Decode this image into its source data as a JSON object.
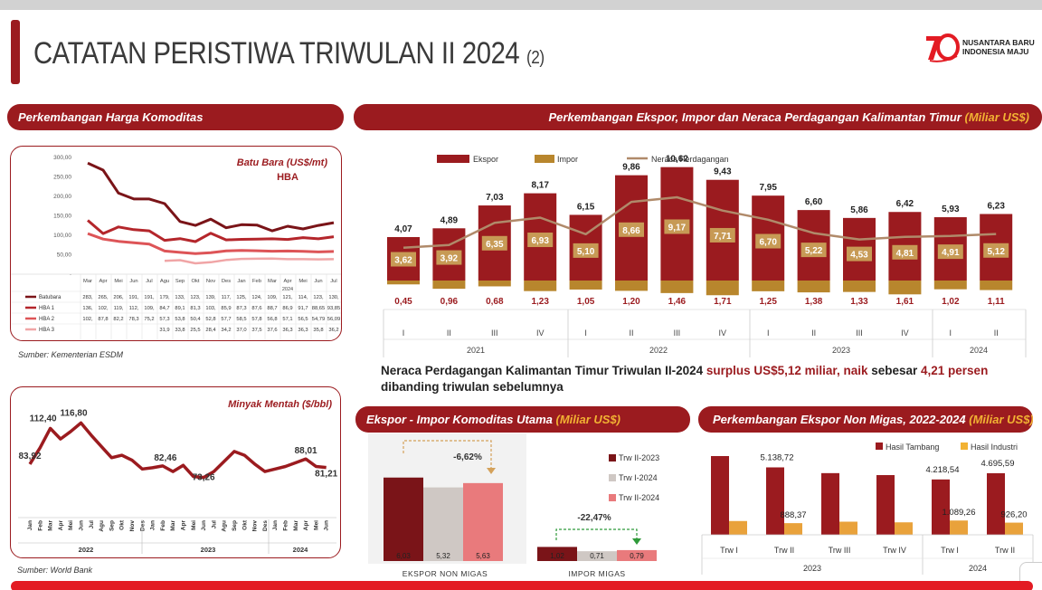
{
  "title": {
    "main": "CATATAN PERISTIWA TRIWULAN II 2024",
    "sub": "(2)"
  },
  "logo": {
    "line1": "NUSANTARA BARU",
    "line2": "INDONESIA MAJU"
  },
  "colors": {
    "brand_red": "#9b1b1f",
    "gold": "#b8862d",
    "yellow": "#f2b233",
    "dark_red": "#7a1418",
    "gray": "#cfc8c4",
    "pink": "#e97a7c"
  },
  "banners": {
    "komoditas": "Perkembangan Harga Komoditas",
    "eksim_prefix": "Perkembangan Ekspor, Impor dan Neraca Perdagangan Kalimantan Timur",
    "eksim_unit": "(Miliar US$)",
    "utama_prefix": "Ekspor - Impor Komoditas Utama",
    "utama_unit": "(Miliar US$)",
    "nonmigas_prefix": "Perkembangan Ekspor Non Migas, 2022-2024",
    "nonmigas_unit": "(Miliar US$)"
  },
  "sources": {
    "esdm": "Sumber: Kementerian ESDM",
    "wb": "Sumber: World Bank"
  },
  "summary": {
    "p1": "Neraca Perdagangan Kalimantan Timur Triwulan II-2024 ",
    "p2": "surplus US$5,12 miliar, naik ",
    "p3": "sebesar ",
    "p4": "4,21 persen",
    "p5": " dibanding triwulan sebelumnya"
  },
  "chart_data": [
    {
      "id": "batubara",
      "type": "line",
      "title": "Batu Bara (US$/mt)",
      "subtitle": "HBA",
      "ylim": [
        0,
        300
      ],
      "yticks": [
        "300,00",
        "250,00",
        "200,00",
        "150,00",
        "100,00",
        "50,00",
        "-"
      ],
      "categories": [
        "Mar",
        "Apr",
        "Mei",
        "Jun",
        "Jul",
        "Agu",
        "Sep",
        "Okt",
        "Nov",
        "Des",
        "Jan",
        "Feb",
        "Mar",
        "Apr",
        "Mei",
        "Jun",
        "Jul"
      ],
      "year_label": "2024",
      "series": [
        {
          "name": "Batubara",
          "color": "#7a1418",
          "labels": [
            "283,",
            "265,",
            "206,",
            "191,",
            "191,",
            "179,",
            "133,",
            "123,",
            "139,",
            "117,",
            "125,",
            "124,",
            "109,",
            "121,",
            "114,",
            "123,",
            "130,"
          ],
          "values": [
            283,
            265,
            206,
            191,
            191,
            179,
            133,
            123,
            139,
            117,
            125,
            124,
            109,
            121,
            114,
            123,
            130
          ]
        },
        {
          "name": "HBA 1",
          "color": "#b4262b",
          "labels": [
            "136,",
            "102,",
            "119,",
            "112,",
            "109,",
            "84,7",
            "89,1",
            "81,3",
            "103,",
            "85,9",
            "87,3",
            "87,6",
            "88,7",
            "86,9",
            "91,7",
            "88,65",
            "93,85"
          ],
          "values": [
            136,
            102,
            119,
            112,
            109,
            84.7,
            89.1,
            81.3,
            103,
            85.9,
            87.3,
            87.6,
            88.7,
            86.9,
            91.7,
            88.65,
            93.85
          ]
        },
        {
          "name": "HBA 2",
          "color": "#dd5457",
          "labels": [
            "102,",
            "87,8",
            "82,2",
            "78,3",
            "75,2",
            "57,3",
            "53,8",
            "50,4",
            "52,8",
            "57,7",
            "58,5",
            "57,8",
            "56,8",
            "57,1",
            "56,5",
            "54,79",
            "56,09"
          ],
          "values": [
            102,
            87.8,
            82.2,
            78.3,
            75.2,
            57.3,
            53.8,
            50.4,
            52.8,
            57.7,
            58.5,
            57.8,
            56.8,
            57.1,
            56.5,
            54.79,
            56.09
          ]
        },
        {
          "name": "HBA 3",
          "color": "#f0a5a6",
          "labels": [
            "",
            "",
            "",
            "",
            "",
            "31,9",
            "33,8",
            "25,5",
            "28,4",
            "34,2",
            "37,0",
            "37,5",
            "37,6",
            "36,3",
            "36,3",
            "35,8",
            "36,2"
          ],
          "values": [
            null,
            null,
            null,
            null,
            null,
            31.9,
            33.8,
            25.5,
            28.4,
            34.2,
            37.0,
            37.5,
            37.6,
            36.3,
            36.3,
            35.8,
            36.2
          ]
        }
      ]
    },
    {
      "id": "minyak",
      "type": "line",
      "title": "Minyak Mentah ($/bbl)",
      "ylim": [
        60,
        125
      ],
      "categories": [
        "Jan",
        "Feb",
        "Mar",
        "Apr",
        "Mei",
        "Jun",
        "Jul",
        "Agu",
        "Sep",
        "Okt",
        "Nov",
        "Des",
        "Jan",
        "Feb",
        "Mar",
        "Apr",
        "Mei",
        "Jun",
        "Jul",
        "Agu",
        "Sep",
        "Okt",
        "Nov",
        "Des",
        "Jan",
        "Feb",
        "Mar",
        "Apr",
        "Mei",
        "Jun"
      ],
      "years": [
        "2022",
        "2023",
        "2024"
      ],
      "series": [
        {
          "name": "Minyak Mentah",
          "values": [
            83.92,
            97,
            112.4,
            104,
            110,
            116.8,
            107,
            98,
            89,
            91,
            87,
            80,
            81,
            82.46,
            78,
            83,
            74,
            73.26,
            78,
            86,
            94,
            91,
            84,
            78,
            80,
            82,
            85,
            88.01,
            82,
            81.21
          ]
        }
      ],
      "point_labels": [
        "83,92",
        "112,40",
        "116,80",
        "82,46",
        "73,26",
        "88,01",
        "81,21"
      ]
    },
    {
      "id": "ekspor-impor",
      "type": "bar",
      "legend": [
        "Ekspor",
        "Impor",
        "Neraca Perdagangan"
      ],
      "quarters": [
        "I",
        "II",
        "III",
        "IV",
        "I",
        "II",
        "III",
        "IV",
        "I",
        "II",
        "III",
        "IV",
        "I",
        "II"
      ],
      "years": [
        "2021",
        "2022",
        "2023",
        "2024"
      ],
      "series": [
        {
          "name": "Ekspor",
          "labels": [
            "4,07",
            "4,89",
            "7,03",
            "8,17",
            "6,15",
            "9,86",
            "10,62",
            "9,43",
            "7,95",
            "6,60",
            "5,86",
            "6,42",
            "5,93",
            "6,23"
          ],
          "values": [
            4.07,
            4.89,
            7.03,
            8.17,
            6.15,
            9.86,
            10.62,
            9.43,
            7.95,
            6.6,
            5.86,
            6.42,
            5.93,
            6.23
          ]
        },
        {
          "name": "Impor",
          "labels": [
            "0,45",
            "0,96",
            "0,68",
            "1,23",
            "1,05",
            "1,20",
            "1,46",
            "1,71",
            "1,25",
            "1,38",
            "1,33",
            "1,61",
            "1,02",
            "1,11"
          ],
          "values": [
            0.45,
            0.96,
            0.68,
            1.23,
            1.05,
            1.2,
            1.46,
            1.71,
            1.25,
            1.38,
            1.33,
            1.61,
            1.02,
            1.11
          ]
        },
        {
          "name": "Neraca Perdagangan",
          "labels": [
            "3,62",
            "3,92",
            "6,35",
            "6,93",
            "5,10",
            "8,66",
            "9,17",
            "7,71",
            "6,70",
            "5,22",
            "4,53",
            "4,81",
            "4,91",
            "5,12"
          ],
          "values": [
            3.62,
            3.92,
            6.35,
            6.93,
            5.1,
            8.66,
            9.17,
            7.71,
            6.7,
            5.22,
            4.53,
            4.81,
            4.91,
            5.12
          ]
        }
      ]
    },
    {
      "id": "komoditas-utama",
      "type": "bar",
      "legend": [
        "Trw II-2023",
        "Trw I-2024",
        "Trw II-2024"
      ],
      "categories": [
        "EKSPOR NON MIGAS",
        "IMPOR MIGAS"
      ],
      "series": [
        {
          "name": "Trw II-2023",
          "labels": [
            "6,03",
            "1,02"
          ],
          "values": [
            6.03,
            1.02
          ]
        },
        {
          "name": "Trw I-2024",
          "labels": [
            "5,32",
            "0,71"
          ],
          "values": [
            5.32,
            0.71
          ]
        },
        {
          "name": "Trw II-2024",
          "labels": [
            "5,63",
            "0,79"
          ],
          "values": [
            5.63,
            0.79
          ]
        }
      ],
      "annotations": [
        "-6,62%",
        "-22,47%"
      ]
    },
    {
      "id": "non-migas",
      "type": "bar",
      "legend": [
        "Hasil Tambang",
        "Hasil Industri"
      ],
      "categories": [
        "Trw I",
        "Trw II",
        "Trw III",
        "Trw IV",
        "Trw I",
        "Trw II"
      ],
      "years": [
        "2023",
        "2024"
      ],
      "series": [
        {
          "name": "Hasil Tambang",
          "values": [
            6000,
            5138.72,
            4700,
            4550,
            4218.54,
            4695.59
          ],
          "labels": [
            "",
            "5.138,72",
            "",
            "",
            "4.218,54",
            "4.695,59"
          ]
        },
        {
          "name": "Hasil Industri",
          "values": [
            1050,
            888.37,
            1000,
            950,
            1089.26,
            926.2
          ],
          "labels": [
            "",
            "888,37",
            "",
            "",
            "1.089,26",
            "926,20"
          ]
        }
      ]
    }
  ]
}
